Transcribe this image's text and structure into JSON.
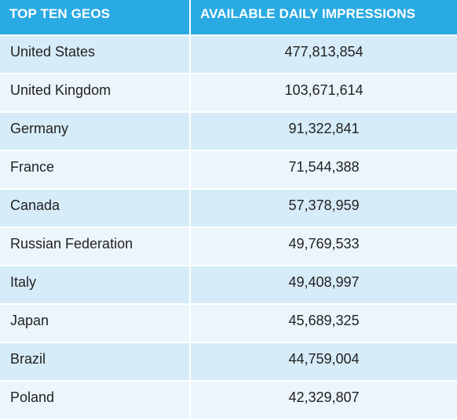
{
  "table": {
    "headers": {
      "geo": "TOP TEN GEOS",
      "impressions": "AVAILABLE DAILY IMPRESSIONS"
    },
    "rows": [
      {
        "country": "United States",
        "impressions": "477,813,854"
      },
      {
        "country": "United Kingdom",
        "impressions": "103,671,614"
      },
      {
        "country": "Germany",
        "impressions": "91,322,841"
      },
      {
        "country": "France",
        "impressions": "71,544,388"
      },
      {
        "country": "Canada",
        "impressions": "57,378,959"
      },
      {
        "country": "Russian Federation",
        "impressions": "49,769,533"
      },
      {
        "country": "Italy",
        "impressions": "49,408,997"
      },
      {
        "country": "Japan",
        "impressions": "45,689,325"
      },
      {
        "country": "Brazil",
        "impressions": "44,759,004"
      },
      {
        "country": "Poland",
        "impressions": "42,329,807"
      }
    ]
  },
  "colors": {
    "header_background": "#29aae3",
    "row_odd": "#d6ecf8",
    "row_even": "#ebf5fc"
  }
}
